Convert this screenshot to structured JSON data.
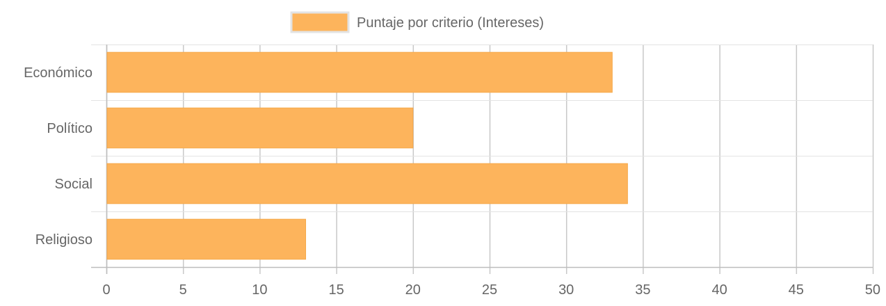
{
  "chart_data": {
    "type": "bar",
    "orientation": "horizontal",
    "categories": [
      "Económico",
      "Político",
      "Social",
      "Religioso"
    ],
    "series": [
      {
        "name": "Puntaje por criterio (Intereses)",
        "values": [
          33,
          20,
          34,
          13
        ]
      }
    ],
    "xlim": [
      0,
      50
    ],
    "xticks": [
      0,
      5,
      10,
      15,
      20,
      25,
      30,
      35,
      40,
      45,
      50
    ],
    "grid": true,
    "legend": "top-center",
    "colors": {
      "bar": "#FDB45C",
      "bar_border": "#F5A94A"
    }
  }
}
